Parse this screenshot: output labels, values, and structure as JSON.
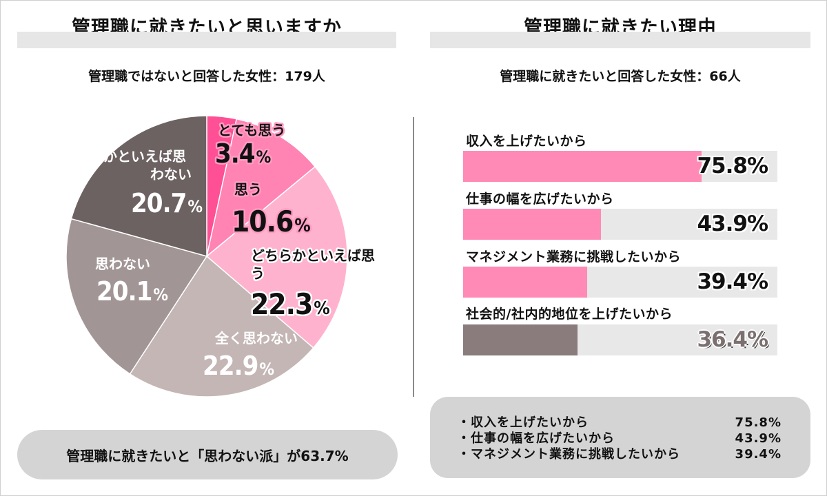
{
  "left": {
    "title": "管理職に就きたいと思いますか",
    "subtitle": "管理職ではないと回答した女性：179人",
    "summary": "管理職に就きたいと「思わない派」が63.7%"
  },
  "right": {
    "title": "管理職に就きたい理由",
    "subtitle": "管理職に就きたいと回答した女性：66人",
    "summary": [
      {
        "label": "・収入を上げたいから",
        "value": "75.8%"
      },
      {
        "label": "・仕事の幅を広げたいから",
        "value": "43.9%"
      },
      {
        "label": "・マネジメント業務に挑戦したいから",
        "value": "39.4%"
      }
    ]
  },
  "chart_data": [
    {
      "type": "pie",
      "title": "管理職に就きたいと思いますか",
      "slices": [
        {
          "label": "とても思う",
          "value": 3.4,
          "display": "3.4",
          "color": "#ff4f95"
        },
        {
          "label": "思う",
          "value": 10.6,
          "display": "10.6",
          "color": "#ff83b3"
        },
        {
          "label": "どちらかといえば思う",
          "value": 22.3,
          "display": "22.3",
          "color": "#ffb2ce"
        },
        {
          "label": "全く思わない",
          "value": 22.9,
          "display": "22.9",
          "color": "#c4b6b5"
        },
        {
          "label": "思わない",
          "value": 20.1,
          "display": "20.1",
          "color": "#a29595"
        },
        {
          "label": "どちらかといえば思わない",
          "value": 20.7,
          "display": "20.7",
          "color": "#6d6262"
        }
      ],
      "unit": "%"
    },
    {
      "type": "bar",
      "title": "管理職に就きたい理由",
      "orientation": "horizontal",
      "categories": [
        "収入を上げたいから",
        "仕事の幅を広げたいから",
        "マネジメント業務に挑戦したいから",
        "社会的/社内的地位を上げたいから"
      ],
      "values": [
        75.8,
        43.9,
        39.4,
        36.4
      ],
      "value_labels": [
        "75.8%",
        "43.9%",
        "39.4%",
        "36.4%"
      ],
      "colors": [
        "#ff8ab5",
        "#ff8ab5",
        "#ff8ab5",
        "#8a7c7c"
      ],
      "xlim": [
        0,
        100
      ]
    }
  ]
}
